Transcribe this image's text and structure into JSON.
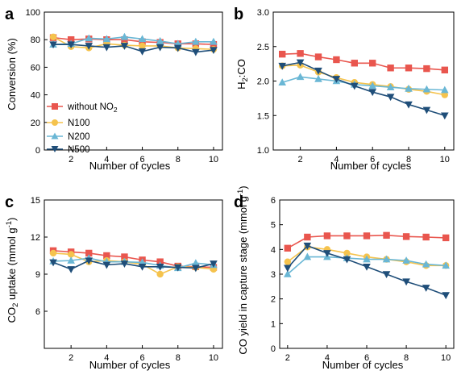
{
  "colors": {
    "without_no2": "#e9564e",
    "N100": "#f5c34d",
    "N200": "#6ab7d5",
    "N500": "#1f4e79"
  },
  "panels_text": {
    "a": {
      "letter": "a",
      "ylabel": "Conversion (%)",
      "xlabel": "Number of cycles"
    },
    "b": {
      "letter": "b",
      "ylabel_main": "H",
      "ylabel_sub": "2",
      "ylabel_tail": ":CO",
      "xlabel": "Number of cycles"
    },
    "c": {
      "letter": "c",
      "ylabel_main": "CO",
      "ylabel_sub": "2",
      "ylabel_tail": " uptake (mmol g",
      "ylabel_sup": "-1",
      "ylabel_end": ")",
      "xlabel": "Number of cycles"
    },
    "d": {
      "letter": "d",
      "ylabel_main": "CO yield in capture stage (mmol g",
      "ylabel_sup": "-1",
      "ylabel_end": ")",
      "xlabel": "Number of cycles"
    }
  },
  "legend": {
    "without_no2": {
      "main": "without NO",
      "sub": "2"
    },
    "N100": "N100",
    "N200": "N200",
    "N500": "N500"
  },
  "chart_data": [
    {
      "id": "a",
      "type": "line",
      "ylabel": "Conversion (%)",
      "xlabel": "Number of cycles",
      "xlim": [
        0.5,
        10.5
      ],
      "ylim": [
        0,
        100
      ],
      "xticks": [
        2,
        4,
        6,
        8,
        10
      ],
      "yticks": [
        0,
        20,
        40,
        60,
        80,
        100
      ],
      "x": [
        1,
        2,
        3,
        4,
        5,
        6,
        7,
        8,
        9,
        10
      ],
      "series": [
        {
          "name": "without NO2",
          "color": "#e9564e",
          "marker": "square",
          "values": [
            81.5,
            80,
            80.5,
            80,
            80,
            78.5,
            78,
            77,
            77,
            76.5
          ]
        },
        {
          "name": "N100",
          "color": "#f5c34d",
          "marker": "circle",
          "values": [
            82,
            75,
            74,
            77,
            76,
            75.5,
            75.5,
            74,
            73.5,
            73
          ]
        },
        {
          "name": "N200",
          "color": "#6ab7d5",
          "marker": "triangle",
          "values": [
            76.5,
            77,
            81,
            80.5,
            82,
            80.5,
            79,
            77,
            78.5,
            78.5
          ]
        },
        {
          "name": "N500",
          "color": "#1f4e79",
          "marker": "triangle-down",
          "values": [
            76.5,
            76.5,
            75.5,
            74.5,
            75.5,
            71.5,
            74.5,
            74,
            71,
            72.5
          ]
        }
      ]
    },
    {
      "id": "b",
      "type": "line",
      "ylabel": "H2:CO",
      "xlabel": "Number of cycles",
      "xlim": [
        0.5,
        10.5
      ],
      "ylim": [
        1.0,
        3.0
      ],
      "xticks": [
        2,
        4,
        6,
        8,
        10
      ],
      "yticks": [
        1.0,
        1.5,
        2.0,
        2.5,
        3.0
      ],
      "x": [
        1,
        2,
        3,
        4,
        5,
        6,
        7,
        8,
        9,
        10
      ],
      "series": [
        {
          "name": "without NO2",
          "color": "#e9564e",
          "marker": "square",
          "values": [
            2.39,
            2.4,
            2.35,
            2.31,
            2.26,
            2.26,
            2.19,
            2.19,
            2.18,
            2.16
          ]
        },
        {
          "name": "N100",
          "color": "#f5c34d",
          "marker": "circle",
          "values": [
            2.22,
            2.23,
            2.13,
            2.05,
            1.98,
            1.95,
            1.92,
            1.88,
            1.85,
            1.8
          ]
        },
        {
          "name": "N200",
          "color": "#6ab7d5",
          "marker": "triangle",
          "values": [
            1.98,
            2.06,
            2.03,
            2.0,
            1.95,
            1.93,
            1.91,
            1.89,
            1.88,
            1.87
          ]
        },
        {
          "name": "N500",
          "color": "#1f4e79",
          "marker": "triangle-down",
          "values": [
            2.22,
            2.27,
            2.15,
            2.03,
            1.93,
            1.84,
            1.77,
            1.66,
            1.58,
            1.5
          ]
        }
      ]
    },
    {
      "id": "c",
      "type": "line",
      "ylabel": "CO2 uptake (mmol g-1)",
      "xlabel": "Number of cycles",
      "xlim": [
        0.5,
        10.5
      ],
      "ylim": [
        3,
        15
      ],
      "xticks": [
        2,
        4,
        6,
        8,
        10
      ],
      "yticks": [
        6,
        9,
        12,
        15
      ],
      "x": [
        1,
        2,
        3,
        4,
        5,
        6,
        7,
        8,
        9,
        10
      ],
      "series": [
        {
          "name": "without NO2",
          "color": "#e9564e",
          "marker": "square",
          "values": [
            10.9,
            10.8,
            10.7,
            10.5,
            10.4,
            10.15,
            10.0,
            9.65,
            9.6,
            9.55
          ]
        },
        {
          "name": "N100",
          "color": "#f5c34d",
          "marker": "circle",
          "values": [
            10.7,
            10.6,
            10.0,
            10.1,
            10.0,
            9.8,
            9.0,
            9.6,
            9.55,
            9.4
          ]
        },
        {
          "name": "N200",
          "color": "#6ab7d5",
          "marker": "triangle",
          "values": [
            10.05,
            10.1,
            10.3,
            10.0,
            10.0,
            9.95,
            9.7,
            9.5,
            9.9,
            9.75
          ]
        },
        {
          "name": "N500",
          "color": "#1f4e79",
          "marker": "triangle-down",
          "values": [
            9.95,
            9.4,
            10.1,
            9.75,
            9.85,
            9.6,
            9.6,
            9.55,
            9.5,
            9.85
          ]
        }
      ]
    },
    {
      "id": "d",
      "type": "line",
      "ylabel": "CO yield in capture stage (mmol g-1)",
      "xlabel": "Number of cycles",
      "xlim": [
        1.6,
        10.4
      ],
      "ylim": [
        0,
        6
      ],
      "xticks": [
        2,
        4,
        6,
        8,
        10
      ],
      "yticks": [
        0,
        1,
        2,
        3,
        4,
        5,
        6
      ],
      "x": [
        2,
        3,
        4,
        5,
        6,
        7,
        8,
        9,
        10
      ],
      "series": [
        {
          "name": "without NO2",
          "color": "#e9564e",
          "marker": "square",
          "values": [
            4.05,
            4.5,
            4.55,
            4.55,
            4.55,
            4.57,
            4.52,
            4.5,
            4.47
          ]
        },
        {
          "name": "N100",
          "color": "#f5c34d",
          "marker": "circle",
          "values": [
            3.5,
            4.1,
            4.0,
            3.85,
            3.7,
            3.6,
            3.5,
            3.35,
            3.35
          ]
        },
        {
          "name": "N200",
          "color": "#6ab7d5",
          "marker": "triangle",
          "values": [
            3.0,
            3.7,
            3.7,
            3.65,
            3.6,
            3.6,
            3.55,
            3.4,
            3.35
          ]
        },
        {
          "name": "N500",
          "color": "#1f4e79",
          "marker": "triangle-down",
          "values": [
            3.25,
            4.15,
            3.85,
            3.6,
            3.3,
            3.0,
            2.7,
            2.45,
            2.15
          ]
        }
      ]
    }
  ]
}
